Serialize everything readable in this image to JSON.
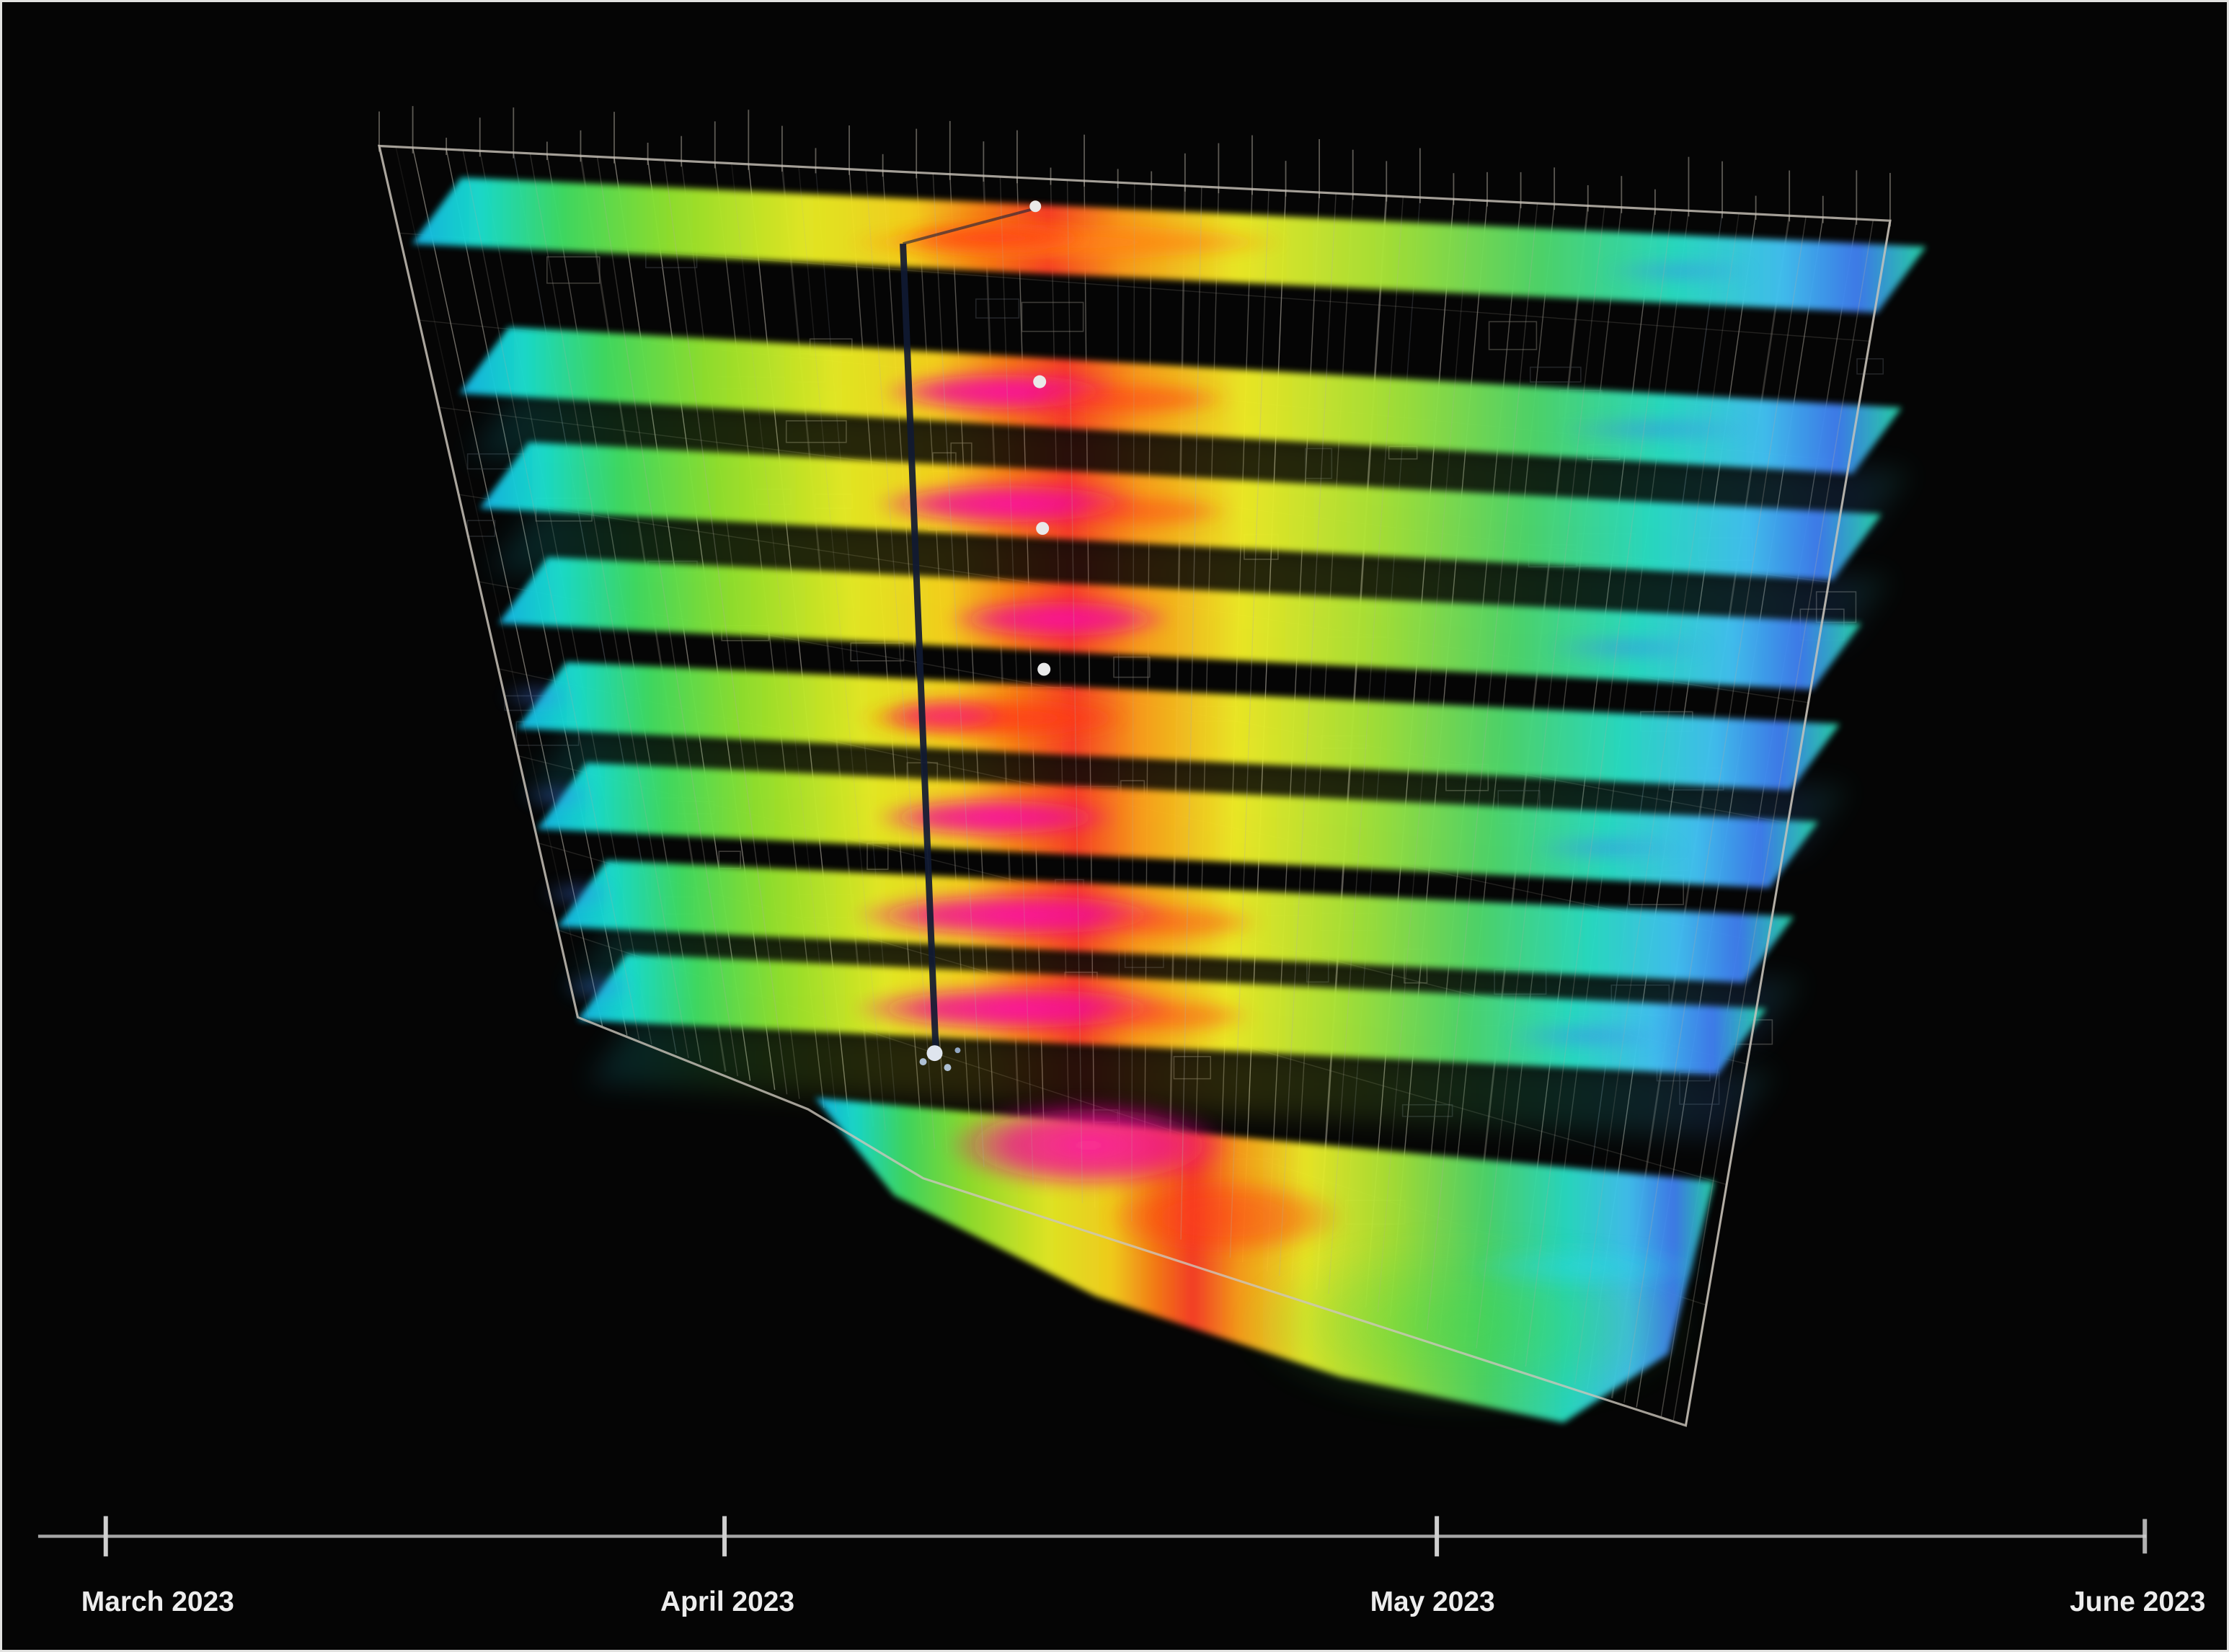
{
  "chart_data": {
    "type": "heatmap",
    "title": "",
    "scene": "3D building wireframe with stacked per-floor heatmap slices over a project timeline",
    "floors_visible": 9,
    "x_axis": {
      "label": "",
      "tick_labels": [
        "March 2023",
        "April 2023",
        "May 2023",
        "June 2023"
      ],
      "range": [
        "March 2023",
        "June 2023"
      ]
    },
    "value_scale": {
      "palette_low_to_high": [
        "#3f7df0",
        "#27d8e8",
        "#41df63",
        "#e9ee25",
        "#ff7d17",
        "#ff4028",
        "#ee1090"
      ]
    },
    "legend": "none",
    "grid": false
  },
  "colors": {
    "background": "#050505",
    "axis": "#a6a6a6",
    "label_text": "#ededed",
    "wireframe": "#b4aea3"
  }
}
